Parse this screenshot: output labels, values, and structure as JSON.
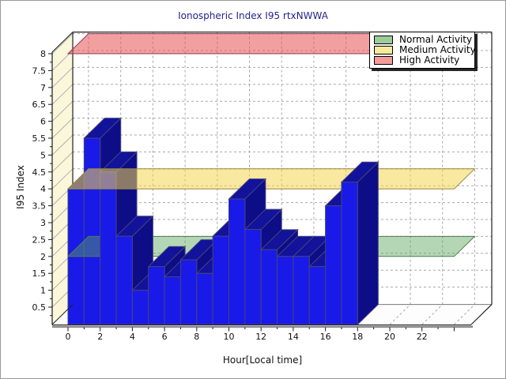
{
  "title": "Ionospheric Index I95 rtxNWWA",
  "colors": {
    "title_text": "#23238E",
    "bar_front": "#1A1AE8",
    "bar_top": "#12129B",
    "bar_side": "#0D0D88",
    "bar_edge": "#44447A",
    "side_wall": "#FBF7DA",
    "wall_hatch": "#B0B0B0",
    "grid": "#A8A8A8",
    "axis": "#1A1A1A",
    "baseline_gray": "#8A8A8A",
    "tick_label": "#111111"
  },
  "chart_data": {
    "type": "bar",
    "title": "Ionospheric Index I95 rtxNWWA",
    "xlabel": "Hour[Local time]",
    "ylabel": "I95 Index",
    "hours": [
      0,
      1,
      2,
      3,
      4,
      5,
      6,
      7,
      8,
      9,
      10,
      11,
      12,
      13,
      14,
      15,
      16,
      17
    ],
    "values": [
      4.0,
      5.5,
      4.5,
      2.6,
      1.0,
      1.7,
      1.4,
      1.9,
      1.5,
      2.6,
      3.7,
      2.8,
      2.2,
      2.0,
      2.0,
      1.7,
      3.5,
      4.2
    ],
    "x_tick_labels": [
      "0",
      "2",
      "4",
      "6",
      "8",
      "10",
      "12",
      "14",
      "16",
      "18",
      "20",
      "22"
    ],
    "x_tick_hours": [
      0,
      2,
      4,
      6,
      8,
      10,
      12,
      14,
      16,
      18,
      20,
      22
    ],
    "y_tick_labels": [
      "0.5",
      "1",
      "1.5",
      "2",
      "2.5",
      "3",
      "3.5",
      "4",
      "4.5",
      "5",
      "5.5",
      "6",
      "6.5",
      "7",
      "7.5",
      "8"
    ],
    "y_ticks": [
      0.5,
      1,
      1.5,
      2,
      2.5,
      3,
      3.5,
      4,
      4.5,
      5,
      5.5,
      6,
      6.5,
      7,
      7.5,
      8
    ],
    "ylim": [
      0,
      8.05
    ],
    "xlim": [
      0,
      25
    ],
    "grid": true,
    "legend_position": "top-right",
    "projection": "oblique-3d",
    "thresholds": [
      {
        "label": "Normal Activity",
        "value": 2,
        "swatch": "#9CCB9C",
        "fill": "rgba(90,165,90,0.45)",
        "stroke": "#4D7F4D"
      },
      {
        "label": "Medium Activity",
        "value": 4,
        "swatch": "#F7EA9C",
        "fill": "rgba(244,214,80,0.55)",
        "stroke": "#99883E"
      },
      {
        "label": "High Activity",
        "value": 8,
        "swatch": "#F49C9C",
        "fill": "rgba(232,80,80,0.55)",
        "stroke": "#8B3A50"
      }
    ]
  }
}
